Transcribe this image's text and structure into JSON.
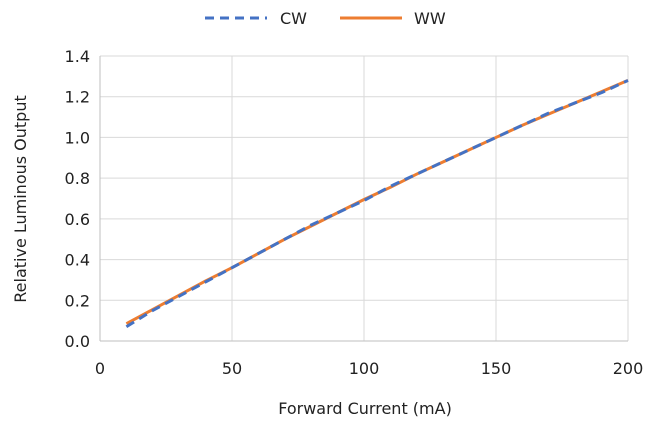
{
  "chart_data": {
    "type": "line",
    "xlabel": "Forward Current (mA)",
    "ylabel": "Relative Luminous Output",
    "xlim": [
      0,
      200
    ],
    "ylim": [
      0,
      1.4
    ],
    "xticks": [
      "0",
      "50",
      "100",
      "150",
      "200"
    ],
    "yticks": [
      "0.0",
      "0.2",
      "0.4",
      "0.6",
      "0.8",
      "1.0",
      "1.2",
      "1.4"
    ],
    "grid": true,
    "legend_position": "top",
    "series": [
      {
        "name": "CW",
        "color": "#4472C4",
        "dash": "dashed",
        "x": [
          10,
          20,
          30,
          40,
          50,
          60,
          70,
          80,
          90,
          100,
          110,
          120,
          130,
          140,
          150,
          160,
          170,
          180,
          190,
          200
        ],
        "y": [
          0.07,
          0.15,
          0.22,
          0.29,
          0.36,
          0.43,
          0.5,
          0.57,
          0.63,
          0.69,
          0.76,
          0.82,
          0.88,
          0.94,
          1.0,
          1.06,
          1.12,
          1.17,
          1.22,
          1.28
        ]
      },
      {
        "name": "WW",
        "color": "#ED7D31",
        "dash": "solid",
        "x": [
          10,
          20,
          30,
          40,
          50,
          60,
          70,
          80,
          90,
          100,
          110,
          120,
          130,
          140,
          150,
          160,
          170,
          180,
          190,
          200
        ],
        "y": [
          0.085,
          0.155,
          0.225,
          0.295,
          0.36,
          0.43,
          0.5,
          0.565,
          0.63,
          0.695,
          0.755,
          0.82,
          0.88,
          0.94,
          1.0,
          1.06,
          1.115,
          1.17,
          1.225,
          1.28
        ]
      }
    ]
  }
}
